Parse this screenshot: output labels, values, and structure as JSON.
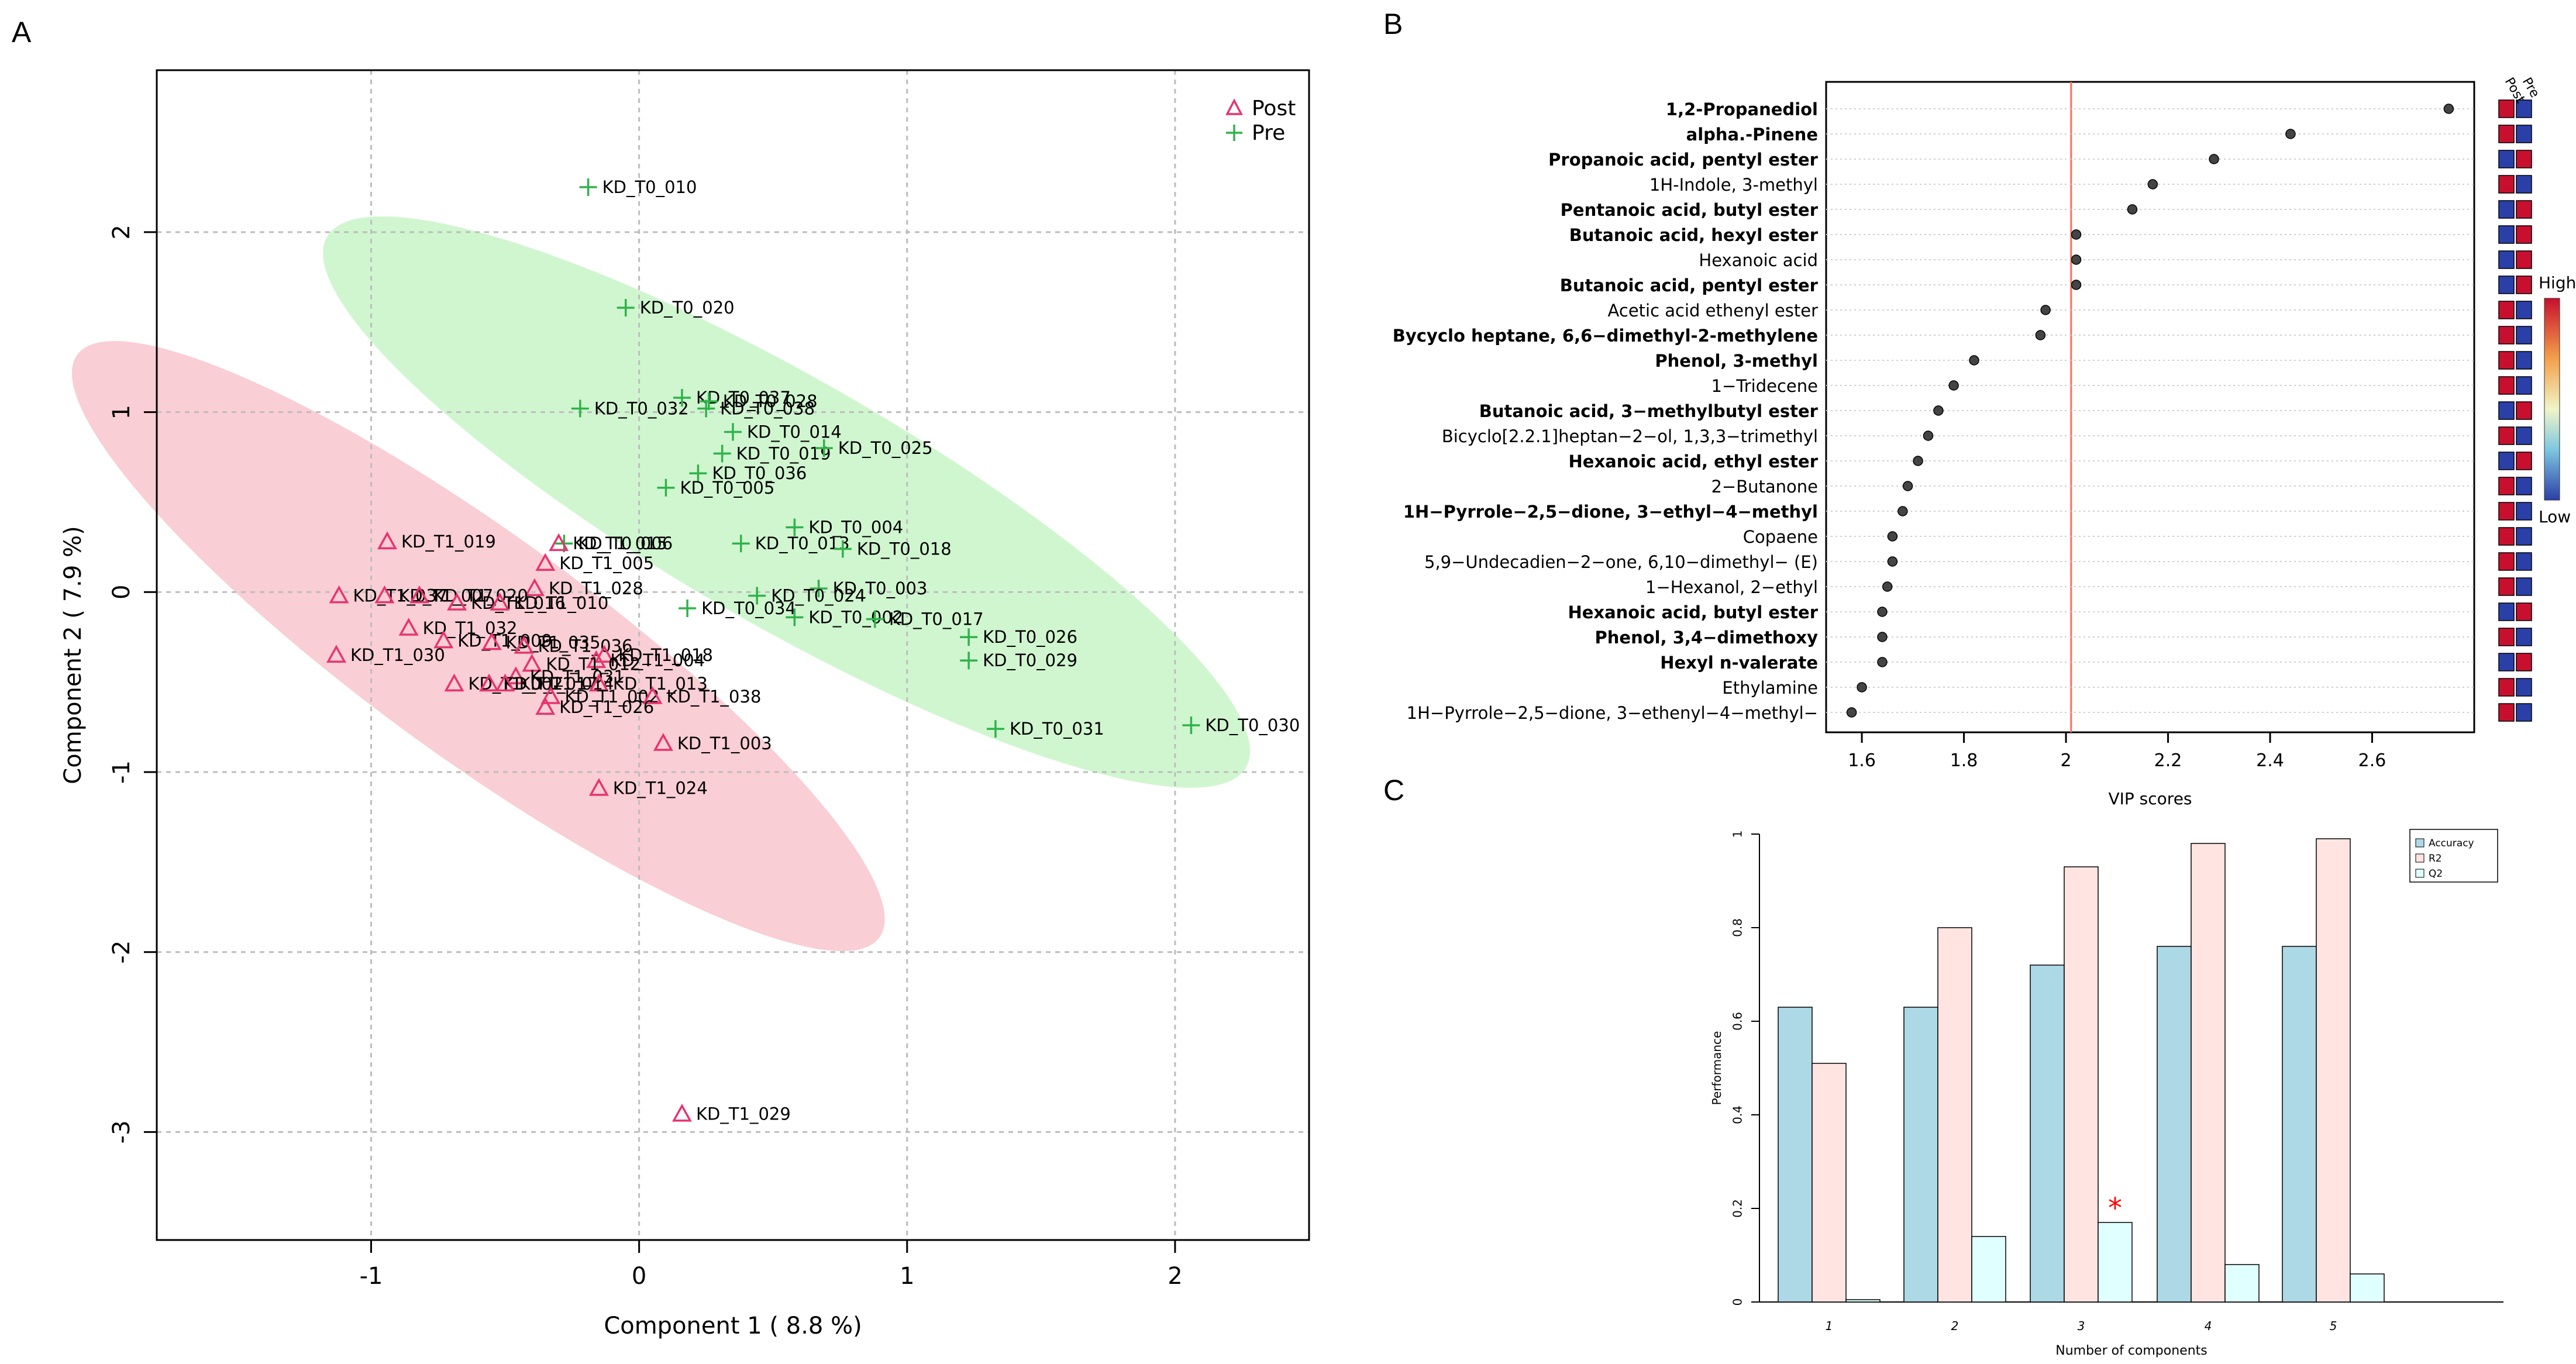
{
  "colors": {
    "post": "#e8336f",
    "pre": "#2fb34a",
    "ellipse_post": "#f4a6b0",
    "ellipse_pre": "#a9eea9",
    "vline": "#ff6b5e",
    "bar_accuracy": "#add8e6",
    "bar_r2": "#ffe4e1",
    "bar_q2": "#e0ffff",
    "star": "#ff0000"
  },
  "panel_labels": {
    "a": "A",
    "b": "B",
    "c": "C"
  },
  "chart_data": [
    {
      "type": "scatter",
      "xlabel": "Component 1 ( 8.8 %)",
      "ylabel": "Component 2 ( 7.9 %)",
      "xlim": [
        -1.8,
        2.5
      ],
      "ylim": [
        -3.6,
        2.9
      ],
      "xticks": [
        -1,
        0,
        1,
        2
      ],
      "yticks": [
        -3,
        -2,
        -1,
        0,
        1,
        2
      ],
      "legend": [
        "Post",
        "Pre"
      ],
      "legend_position": "top-right",
      "points": {
        "Pre": [
          {
            "label": "KD_T0_010",
            "x": -0.19,
            "y": 2.25
          },
          {
            "label": "KD_T0_020",
            "x": -0.05,
            "y": 1.58
          },
          {
            "label": "KD_T0_032",
            "x": -0.22,
            "y": 1.02
          },
          {
            "label": "KD_T0_037",
            "x": 0.16,
            "y": 1.08
          },
          {
            "label": "KD_T0_028",
            "x": 0.26,
            "y": 1.06
          },
          {
            "label": "KD_T0_038",
            "x": 0.25,
            "y": 1.02
          },
          {
            "label": "KD_T0_014",
            "x": 0.35,
            "y": 0.89
          },
          {
            "label": "KD_T0_019",
            "x": 0.31,
            "y": 0.77
          },
          {
            "label": "KD_T0_025",
            "x": 0.69,
            "y": 0.8
          },
          {
            "label": "KD_T0_036",
            "x": 0.22,
            "y": 0.66
          },
          {
            "label": "KD_T0_005",
            "x": 0.1,
            "y": 0.58
          },
          {
            "label": "KD_T0_004",
            "x": 0.58,
            "y": 0.36
          },
          {
            "label": "KD_T0_013",
            "x": 0.38,
            "y": 0.27
          },
          {
            "label": "KD_T0_018",
            "x": 0.76,
            "y": 0.24
          },
          {
            "label": "KD_T0_006",
            "x": -0.28,
            "y": 0.27
          },
          {
            "label": "KD_T0_003",
            "x": 0.67,
            "y": 0.02
          },
          {
            "label": "KD_T0_024",
            "x": 0.44,
            "y": -0.02
          },
          {
            "label": "KD_T0_034",
            "x": 0.18,
            "y": -0.09
          },
          {
            "label": "KD_T0_002",
            "x": 0.58,
            "y": -0.14
          },
          {
            "label": "KD_T0_017",
            "x": 0.88,
            "y": -0.15
          },
          {
            "label": "KD_T0_026",
            "x": 1.23,
            "y": -0.25
          },
          {
            "label": "KD_T0_029",
            "x": 1.23,
            "y": -0.38
          },
          {
            "label": "KD_T0_031",
            "x": 1.33,
            "y": -0.76
          },
          {
            "label": "KD_T0_030",
            "x": 2.06,
            "y": -0.74
          }
        ],
        "Post": [
          {
            "label": "KD_T1_019",
            "x": -0.94,
            "y": 0.28
          },
          {
            "label": "KD_T1_015",
            "x": -0.3,
            "y": 0.27
          },
          {
            "label": "KD_T1_005",
            "x": -0.35,
            "y": 0.16
          },
          {
            "label": "KD_T1_028",
            "x": -0.39,
            "y": 0.02
          },
          {
            "label": "KD_T1_037",
            "x": -1.12,
            "y": -0.02
          },
          {
            "label": "KD_T1_007",
            "x": -0.95,
            "y": -0.02
          },
          {
            "label": "KD_T1_020",
            "x": -0.82,
            "y": -0.02
          },
          {
            "label": "KD_T1_016",
            "x": -0.68,
            "y": -0.06
          },
          {
            "label": "KD_T1_010",
            "x": -0.52,
            "y": -0.06
          },
          {
            "label": "KD_T1_032",
            "x": -0.86,
            "y": -0.2
          },
          {
            "label": "KD_T1_009",
            "x": -0.73,
            "y": -0.27
          },
          {
            "label": "KD_T1_035",
            "x": -0.55,
            "y": -0.28
          },
          {
            "label": "KD_T1_036",
            "x": -0.43,
            "y": -0.3
          },
          {
            "label": "KD_T1_030",
            "x": -1.13,
            "y": -0.35
          },
          {
            "label": "KD_T1_018",
            "x": -0.13,
            "y": -0.35
          },
          {
            "label": "KD_T1_004",
            "x": -0.16,
            "y": -0.38
          },
          {
            "label": "KD_T1_012",
            "x": -0.4,
            "y": -0.4
          },
          {
            "label": "KD_T1_031",
            "x": -0.46,
            "y": -0.47
          },
          {
            "label": "KD_T1_002",
            "x": -0.69,
            "y": -0.51
          },
          {
            "label": "KD_T1_017",
            "x": -0.56,
            "y": -0.51
          },
          {
            "label": "KD_T1_014",
            "x": -0.5,
            "y": -0.51
          },
          {
            "label": "KD_T1_013",
            "x": -0.15,
            "y": -0.51
          },
          {
            "label": "KD_T1_002",
            "x": -0.33,
            "y": -0.58
          },
          {
            "label": "KD_T1_038",
            "x": 0.05,
            "y": -0.58
          },
          {
            "label": "KD_T1_026",
            "x": -0.35,
            "y": -0.64
          },
          {
            "label": "KD_T1_003",
            "x": 0.09,
            "y": -0.84
          },
          {
            "label": "KD_T1_024",
            "x": -0.15,
            "y": -1.09
          },
          {
            "label": "KD_T1_029",
            "x": 0.16,
            "y": -2.9
          }
        ]
      }
    },
    {
      "type": "dot",
      "xlabel": "VIP scores",
      "xlim": [
        1.53,
        2.8
      ],
      "xticks": [
        1.6,
        1.8,
        2.0,
        2.2,
        2.4,
        2.6
      ],
      "reference_line": 2.01,
      "heatmap_columns": [
        "Post",
        "Pre"
      ],
      "colorbar_labels": [
        "High",
        "Low"
      ],
      "features": [
        {
          "name": "1,2-Propanediol",
          "vip": 2.75,
          "bold": true,
          "post": "red",
          "pre": "blue"
        },
        {
          "name": "alpha.-Pinene",
          "vip": 2.44,
          "bold": true,
          "post": "red",
          "pre": "blue"
        },
        {
          "name": "Propanoic acid, pentyl ester",
          "vip": 2.29,
          "bold": true,
          "post": "blue",
          "pre": "red"
        },
        {
          "name": "1H-Indole, 3-methyl",
          "vip": 2.17,
          "bold": false,
          "post": "red",
          "pre": "blue"
        },
        {
          "name": "Pentanoic acid, butyl ester",
          "vip": 2.13,
          "bold": true,
          "post": "blue",
          "pre": "red"
        },
        {
          "name": "Butanoic acid, hexyl ester",
          "vip": 2.02,
          "bold": true,
          "post": "blue",
          "pre": "red"
        },
        {
          "name": "Hexanoic acid",
          "vip": 2.02,
          "bold": false,
          "post": "blue",
          "pre": "red"
        },
        {
          "name": "Butanoic acid, pentyl ester",
          "vip": 2.02,
          "bold": true,
          "post": "blue",
          "pre": "red"
        },
        {
          "name": "Acetic acid ethenyl ester",
          "vip": 1.96,
          "bold": false,
          "post": "red",
          "pre": "blue"
        },
        {
          "name": "Bycyclo heptane, 6,6−dimethyl-2-methylene",
          "vip": 1.95,
          "bold": true,
          "post": "red",
          "pre": "blue"
        },
        {
          "name": "Phenol, 3-methyl",
          "vip": 1.82,
          "bold": true,
          "post": "red",
          "pre": "blue"
        },
        {
          "name": "1−Tridecene",
          "vip": 1.78,
          "bold": false,
          "post": "red",
          "pre": "blue"
        },
        {
          "name": "Butanoic acid, 3−methylbutyl ester",
          "vip": 1.75,
          "bold": true,
          "post": "blue",
          "pre": "red"
        },
        {
          "name": "Bicyclo[2.2.1]heptan−2−ol, 1,3,3−trimethyl",
          "vip": 1.73,
          "bold": false,
          "post": "red",
          "pre": "blue"
        },
        {
          "name": "Hexanoic acid, ethyl ester",
          "vip": 1.71,
          "bold": true,
          "post": "blue",
          "pre": "red"
        },
        {
          "name": "2−Butanone",
          "vip": 1.69,
          "bold": false,
          "post": "red",
          "pre": "blue"
        },
        {
          "name": "1H−Pyrrole−2,5−dione, 3−ethyl−4−methyl",
          "vip": 1.68,
          "bold": true,
          "post": "red",
          "pre": "blue"
        },
        {
          "name": "Copaene",
          "vip": 1.66,
          "bold": false,
          "post": "red",
          "pre": "blue"
        },
        {
          "name": "5,9−Undecadien−2−one, 6,10−dimethyl− (E)",
          "vip": 1.66,
          "bold": false,
          "post": "red",
          "pre": "blue"
        },
        {
          "name": "1−Hexanol, 2−ethyl",
          "vip": 1.65,
          "bold": false,
          "post": "red",
          "pre": "blue"
        },
        {
          "name": "Hexanoic acid, butyl ester",
          "vip": 1.64,
          "bold": true,
          "post": "blue",
          "pre": "red"
        },
        {
          "name": "Phenol, 3,4−dimethoxy",
          "vip": 1.64,
          "bold": true,
          "post": "red",
          "pre": "blue"
        },
        {
          "name": "Hexyl n-valerate",
          "vip": 1.64,
          "bold": true,
          "post": "blue",
          "pre": "red"
        },
        {
          "name": "Ethylamine",
          "vip": 1.6,
          "bold": false,
          "post": "red",
          "pre": "blue"
        },
        {
          "name": "1H−Pyrrole−2,5−dione, 3−ethenyl−4−methyl−",
          "vip": 1.58,
          "bold": false,
          "post": "red",
          "pre": "blue"
        }
      ]
    },
    {
      "type": "bar",
      "xlabel": "Number of components",
      "ylabel": "Performance",
      "ylim": [
        0,
        1.0
      ],
      "yticks": [
        0.0,
        0.2,
        0.4,
        0.6,
        0.8,
        1.0
      ],
      "categories": [
        "1",
        "2",
        "3",
        "4",
        "5"
      ],
      "series": [
        {
          "name": "Accuracy",
          "values": [
            0.63,
            0.63,
            0.72,
            0.76,
            0.76
          ]
        },
        {
          "name": "R2",
          "values": [
            0.51,
            0.8,
            0.93,
            0.98,
            0.99
          ]
        },
        {
          "name": "Q2",
          "values": [
            0.005,
            0.14,
            0.17,
            0.08,
            0.06
          ]
        }
      ],
      "best_marker": {
        "category": "3",
        "series": "Q2",
        "symbol": "*"
      },
      "legend_position": "top-right"
    }
  ]
}
